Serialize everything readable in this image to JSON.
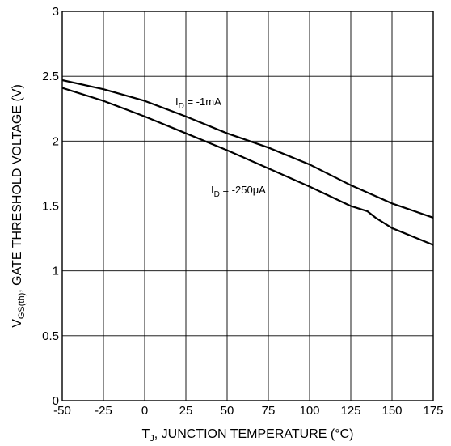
{
  "chart_data": {
    "type": "line",
    "xlabel_main": "T",
    "xlabel_sub": "J",
    "xlabel_rest": ", JUNCTION TEMPERATURE (°C)",
    "ylabel_main": "V",
    "ylabel_sub": "GS(th)",
    "ylabel_rest": ", GATE THRESHOLD VOLTAGE  (V)",
    "xlim": [
      -50,
      175
    ],
    "ylim": [
      0,
      3
    ],
    "x_ticks": [
      -50,
      -25,
      0,
      25,
      50,
      75,
      100,
      125,
      150,
      175
    ],
    "x_tick_labels": [
      "-50",
      "-25",
      "0",
      "25",
      "50",
      "75",
      "100",
      "125",
      "150",
      "175"
    ],
    "y_ticks": [
      0,
      0.5,
      1,
      1.5,
      2,
      2.5,
      3
    ],
    "y_tick_labels": [
      "0",
      "0.5",
      "1",
      "1.5",
      "2",
      "2.5",
      "3"
    ],
    "grid": true,
    "series": [
      {
        "label_main": "I",
        "label_sub": "D",
        "label_rest": " = -1mA",
        "points": [
          [
            -50,
            2.47
          ],
          [
            -25,
            2.4
          ],
          [
            0,
            2.31
          ],
          [
            25,
            2.19
          ],
          [
            50,
            2.06
          ],
          [
            75,
            1.95
          ],
          [
            100,
            1.82
          ],
          [
            125,
            1.66
          ],
          [
            150,
            1.52
          ],
          [
            175,
            1.41
          ]
        ]
      },
      {
        "label_main": "I",
        "label_sub": "D",
        "label_rest": " = -250μA",
        "points": [
          [
            -50,
            2.41
          ],
          [
            -25,
            2.31
          ],
          [
            0,
            2.19
          ],
          [
            25,
            2.06
          ],
          [
            50,
            1.93
          ],
          [
            75,
            1.79
          ],
          [
            100,
            1.65
          ],
          [
            125,
            1.5
          ],
          [
            135,
            1.46
          ],
          [
            140,
            1.41
          ],
          [
            150,
            1.33
          ],
          [
            175,
            1.2
          ]
        ]
      }
    ]
  }
}
